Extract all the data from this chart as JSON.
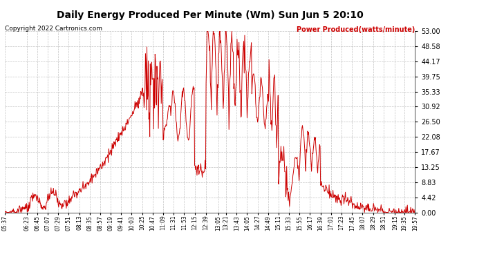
{
  "title": "Daily Energy Produced Per Minute (Wm) Sun Jun 5 20:10",
  "copyright": "Copyright 2022 Cartronics.com",
  "legend_label": "Power Produced(watts/minute)",
  "line_color": "#cc0000",
  "background_color": "#ffffff",
  "plot_bg_color": "#ffffff",
  "grid_color": "#999999",
  "yticks": [
    0.0,
    4.42,
    8.83,
    13.25,
    17.67,
    22.08,
    26.5,
    30.92,
    35.33,
    39.75,
    44.17,
    48.58,
    53.0
  ],
  "ylim": [
    0.0,
    53.0
  ],
  "xtick_labels": [
    "05:37",
    "06:23",
    "06:45",
    "07:07",
    "07:29",
    "07:51",
    "08:13",
    "08:35",
    "08:57",
    "09:19",
    "09:41",
    "10:03",
    "10:25",
    "10:47",
    "11:09",
    "11:31",
    "11:53",
    "12:15",
    "12:39",
    "13:05",
    "13:21",
    "13:43",
    "14:05",
    "14:27",
    "14:49",
    "15:11",
    "15:33",
    "15:55",
    "16:17",
    "16:39",
    "17:01",
    "17:23",
    "17:45",
    "18:07",
    "18:29",
    "18:51",
    "19:15",
    "19:35",
    "19:57"
  ],
  "figsize": [
    6.9,
    3.75
  ],
  "dpi": 100
}
